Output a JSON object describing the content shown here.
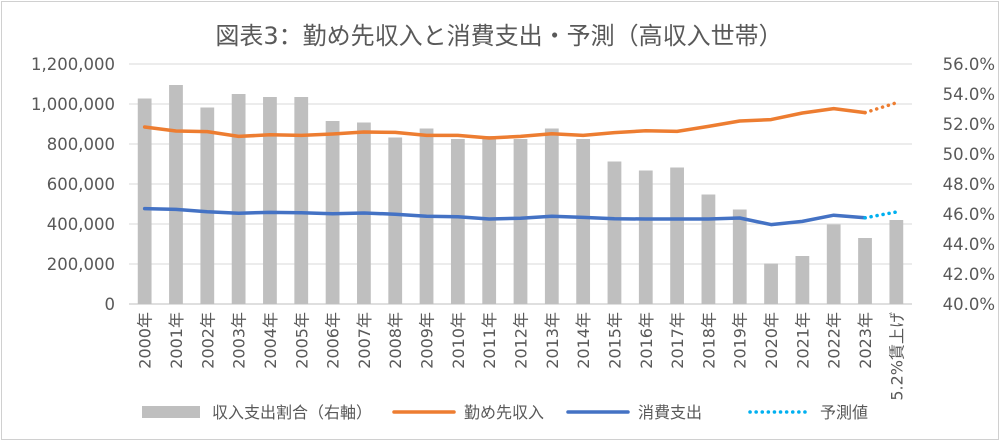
{
  "chart_data": {
    "type": "bar",
    "title": "図表3：勤め先収入と消費支出・予測（高収入世帯）",
    "categories": [
      "2000年",
      "2001年",
      "2002年",
      "2003年",
      "2004年",
      "2005年",
      "2006年",
      "2007年",
      "2008年",
      "2009年",
      "2010年",
      "2011年",
      "2012年",
      "2013年",
      "2014年",
      "2015年",
      "2016年",
      "2017年",
      "2018年",
      "2019年",
      "2020年",
      "2021年",
      "2022年",
      "2023年",
      "5.2%賃上げ"
    ],
    "y_left": {
      "ylim": [
        0,
        1200000
      ],
      "ticks": [
        "0",
        "200,000",
        "400,000",
        "600,000",
        "800,000",
        "1,000,000",
        "1,200,000"
      ]
    },
    "y_right": {
      "ylim": [
        40.0,
        56.0
      ],
      "ticks": [
        "40.0%",
        "42.0%",
        "44.0%",
        "46.0%",
        "48.0%",
        "50.0%",
        "52.0%",
        "54.0%",
        "56.0%"
      ]
    },
    "series": [
      {
        "name": "収入支出割合（右軸）",
        "type": "bar",
        "axis": "right",
        "color": "#bfbfbf",
        "values": [
          53.7,
          54.6,
          53.1,
          54.0,
          53.8,
          53.8,
          52.2,
          52.1,
          51.1,
          51.7,
          51.0,
          51.2,
          51.0,
          51.7,
          51.0,
          49.5,
          48.9,
          49.1,
          47.3,
          46.3,
          42.7,
          43.2,
          45.3,
          44.4,
          45.6
        ]
      },
      {
        "name": "勤め先収入",
        "type": "line",
        "axis": "left",
        "color": "#ed7d31",
        "values": [
          885000,
          865000,
          862000,
          838000,
          846000,
          843000,
          850000,
          860000,
          858000,
          843000,
          843000,
          830000,
          838000,
          851000,
          843000,
          857000,
          866000,
          863000,
          888000,
          915000,
          922000,
          955000,
          977000,
          957000,
          null
        ]
      },
      {
        "name": "消費支出",
        "type": "line",
        "axis": "left",
        "color": "#4472c4",
        "values": [
          477000,
          473000,
          461000,
          454000,
          458000,
          456000,
          451000,
          455000,
          449000,
          439000,
          436000,
          425000,
          429000,
          439000,
          433000,
          426000,
          425000,
          425000,
          425000,
          430000,
          397000,
          413000,
          444000,
          431000,
          null
        ]
      },
      {
        "name": "予測値",
        "type": "line",
        "axis": "left",
        "style": "dotted",
        "color": "#00b0f0",
        "segments": [
          {
            "color": "#ed7d31",
            "points": [
              [
                "2023年",
                957000
              ],
              [
                "5.2%賃上げ",
                1006000
              ]
            ]
          },
          {
            "color": "#00b0f0",
            "points": [
              [
                "2023年",
                431000
              ],
              [
                "5.2%賃上げ",
                460000
              ]
            ]
          }
        ]
      }
    ],
    "legend": "bottom",
    "grid": true
  }
}
